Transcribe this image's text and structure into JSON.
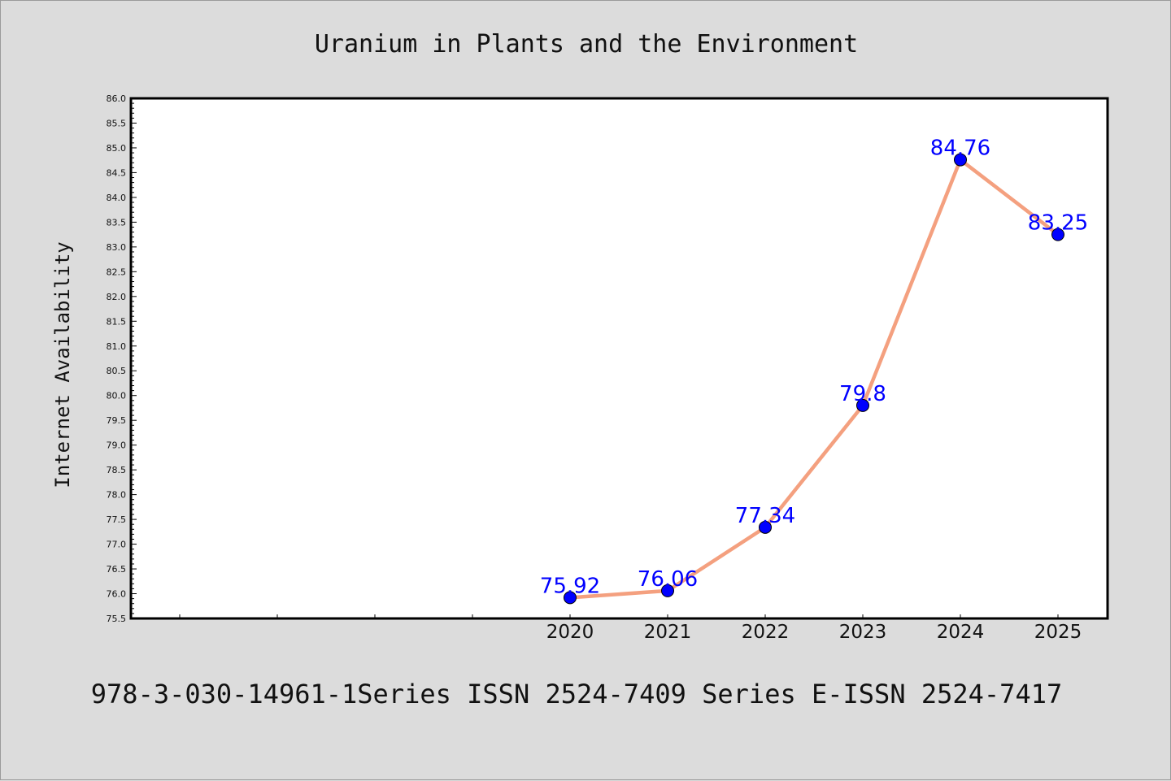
{
  "chart_data": {
    "type": "line",
    "title": "Uranium in Plants and the Environment",
    "xlabel": "",
    "ylabel": "Internet Availability",
    "footer": "978-3-030-14961-1Series ISSN 2524-7409 Series E-ISSN 2524-7417",
    "categories": [
      "2020",
      "2021",
      "2022",
      "2023",
      "2024",
      "2025"
    ],
    "x_extra_ticks": 4,
    "series": [
      {
        "values": [
          75.92,
          76.06,
          77.34,
          79.8,
          84.76,
          83.25
        ],
        "data_labels": [
          "75.92",
          "76.06",
          "77.34",
          "79.8",
          "84.76",
          "83.25"
        ]
      }
    ],
    "ylim": [
      75.5,
      86.0
    ],
    "ytick_step": 0.5,
    "grid": false,
    "legend": "none",
    "colors": {
      "line": "#f4a07f",
      "marker": "#0000ff",
      "data_label": "#0000ff",
      "plot_background": "#ffffff",
      "figure_background": "#dcdcdc"
    }
  }
}
